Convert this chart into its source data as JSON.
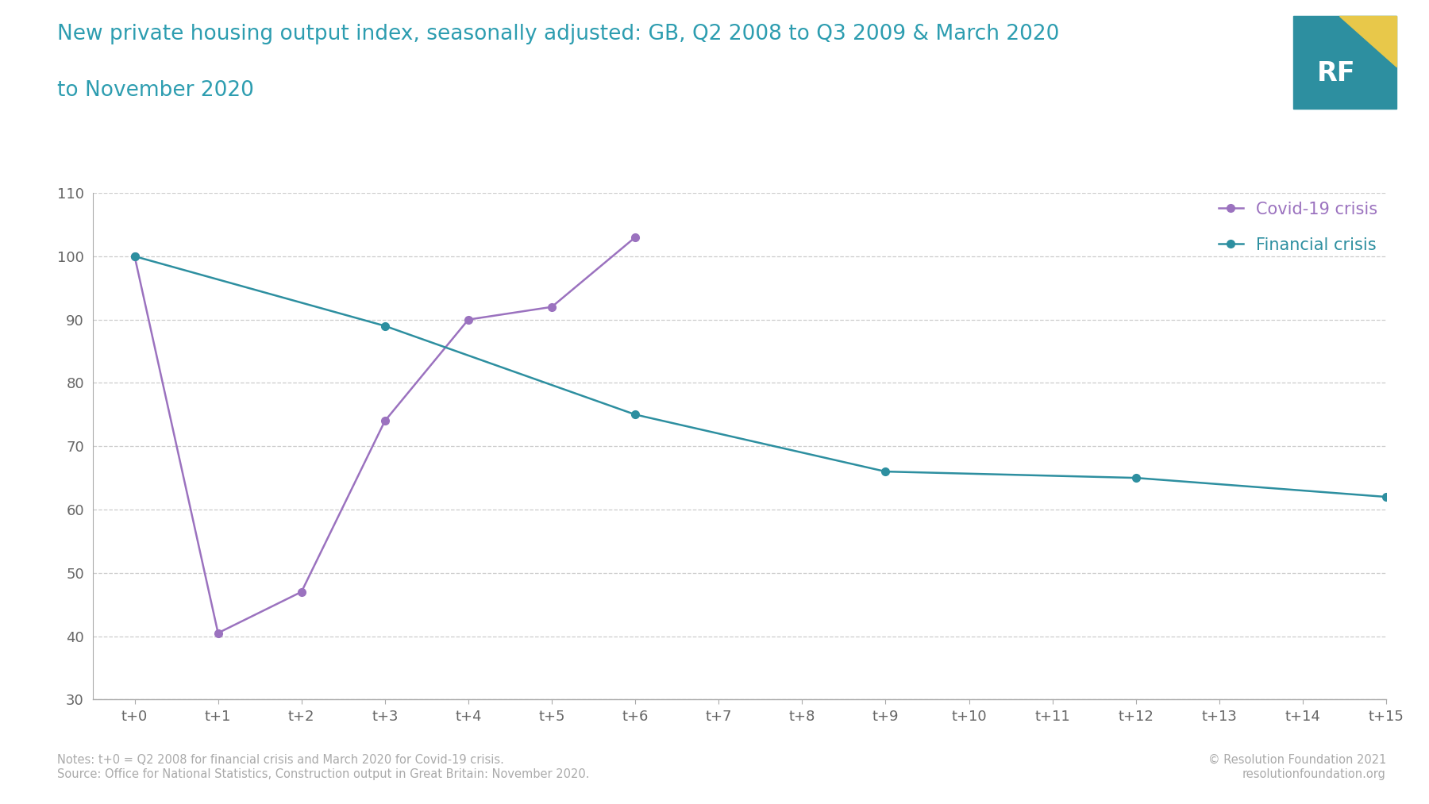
{
  "title_line1": "New private housing output index, seasonally adjusted: GB, Q2 2008 to Q3 2009 & March 2020",
  "title_line2": "to November 2020",
  "title_color": "#2d9db0",
  "background_color": "#ffffff",
  "ylim": [
    30,
    110
  ],
  "yticks": [
    30,
    40,
    50,
    60,
    70,
    80,
    90,
    100,
    110
  ],
  "xtick_labels": [
    "t+0",
    "t+1",
    "t+2",
    "t+3",
    "t+4",
    "t+5",
    "t+6",
    "t+7",
    "t+8",
    "t+9",
    "t+10",
    "t+11",
    "t+12",
    "t+13",
    "t+14",
    "t+15"
  ],
  "covid_color": "#9b72bf",
  "financial_color": "#2d8fa0",
  "covid_x": [
    0,
    1,
    2,
    3,
    4,
    5,
    6
  ],
  "covid_y": [
    100,
    40.5,
    47,
    74,
    90,
    92,
    103
  ],
  "financial_x": [
    0,
    3,
    6,
    9,
    12,
    15
  ],
  "financial_y": [
    100,
    89,
    75,
    66,
    65,
    62
  ],
  "legend_covid": "Covid-19 crisis",
  "legend_financial": "Financial crisis",
  "notes_line1": "Notes: t+0 = Q2 2008 for financial crisis and March 2020 for Covid-19 crisis.",
  "notes_line2": "Source: Office for National Statistics, Construction output in Great Britain: November 2020.",
  "copyright": "© Resolution Foundation 2021\nresolutionfoundation.org",
  "notes_color": "#aaaaaa",
  "grid_color": "#cccccc",
  "axis_color": "#aaaaaa",
  "rf_logo_yellow": "#e8c84a",
  "rf_logo_teal": "#2d8fa0",
  "rf_logo_text": "#ffffff"
}
